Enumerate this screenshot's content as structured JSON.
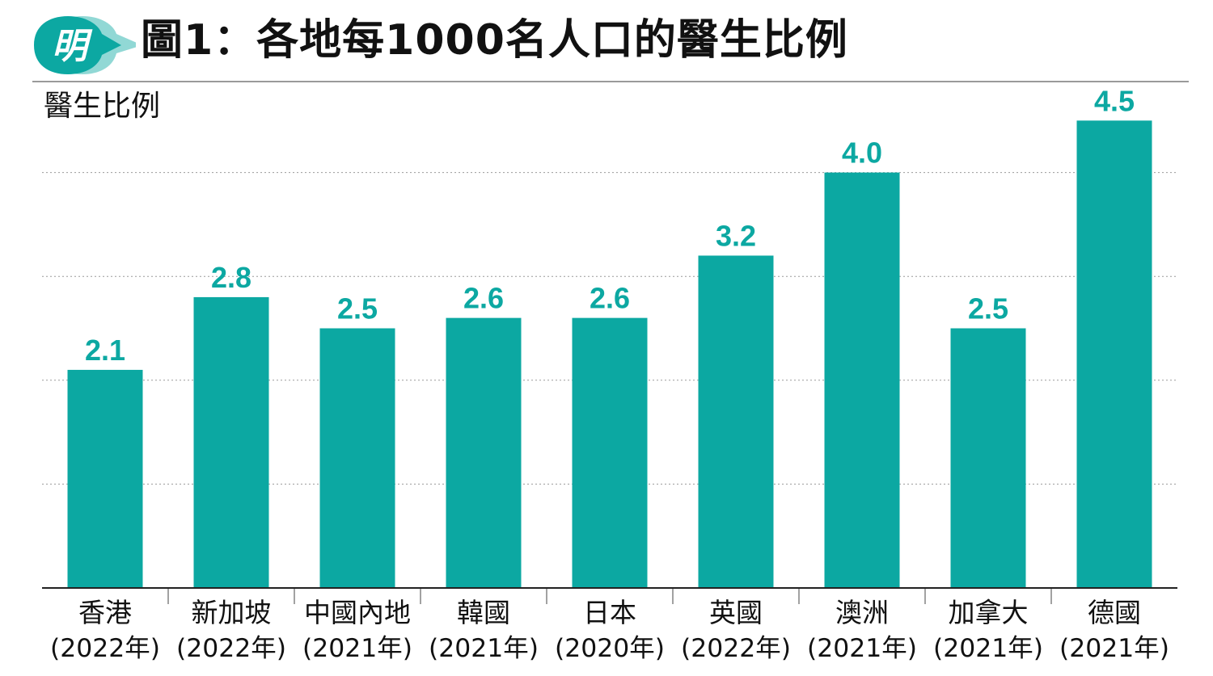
{
  "header": {
    "logo_text": "明",
    "title": "圖1：各地每1000名人口的醫生比例"
  },
  "chart_data": {
    "type": "bar",
    "title": "圖1：各地每1000名人口的醫生比例",
    "ylabel": "醫生比例",
    "xlabel": "",
    "ylim": [
      0,
      4.5
    ],
    "grid": true,
    "bar_color": "#0ca8a2",
    "categories": [
      {
        "name": "香港",
        "year": "(2022年)"
      },
      {
        "name": "新加坡",
        "year": "(2022年)"
      },
      {
        "name": "中國內地",
        "year": "(2021年)"
      },
      {
        "name": "韓國",
        "year": "(2021年)"
      },
      {
        "name": "日本",
        "year": "(2020年)"
      },
      {
        "name": "英國",
        "year": "(2022年)"
      },
      {
        "name": "澳洲",
        "year": "(2021年)"
      },
      {
        "name": "加拿大",
        "year": "(2021年)"
      },
      {
        "name": "德國",
        "year": "(2021年)"
      }
    ],
    "values": [
      2.1,
      2.8,
      2.5,
      2.6,
      2.6,
      3.2,
      4.0,
      2.5,
      4.5
    ],
    "value_labels": [
      "2.1",
      "2.8",
      "2.5",
      "2.6",
      "2.6",
      "3.2",
      "4.0",
      "2.5",
      "4.5"
    ]
  }
}
